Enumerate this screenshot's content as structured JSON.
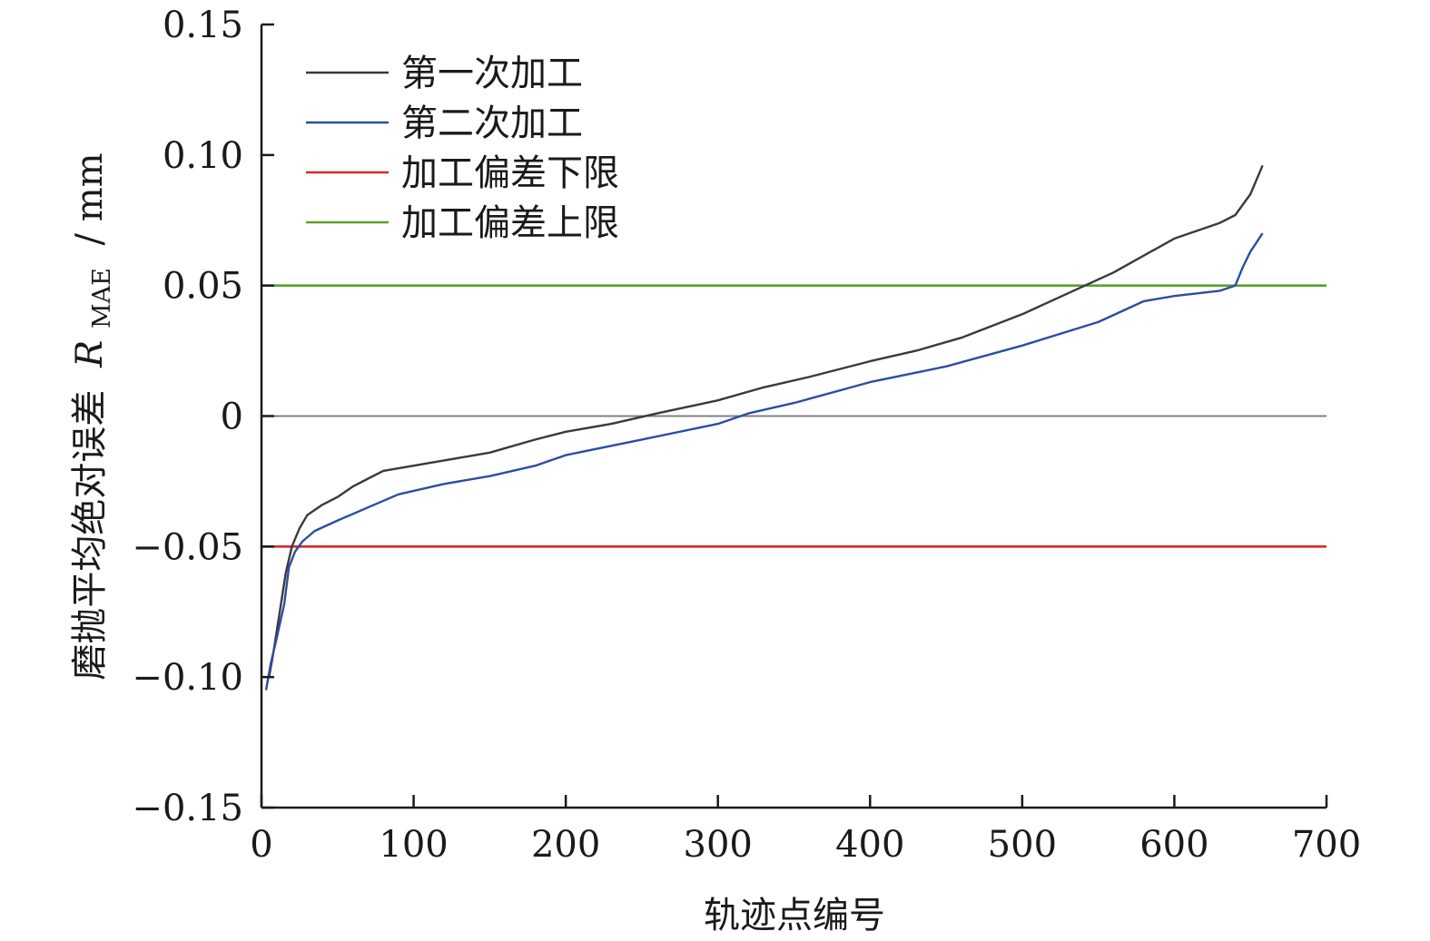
{
  "chart_data": {
    "type": "line",
    "xlabel": "轨迹点编号",
    "ylabel_main": "磨抛平均绝对误差",
    "ylabel_symbol": "R",
    "ylabel_subscript": "MAE",
    "ylabel_unit": "/ mm",
    "xlim": [
      0,
      700
    ],
    "ylim": [
      -0.15,
      0.15
    ],
    "x_ticks": [
      0,
      100,
      200,
      300,
      400,
      500,
      600,
      700
    ],
    "x_tick_labels": [
      "0",
      "100",
      "200",
      "300",
      "400",
      "500",
      "600",
      "700"
    ],
    "y_ticks": [
      -0.15,
      -0.1,
      -0.05,
      0,
      0.05,
      0.1,
      0.15
    ],
    "y_tick_labels": [
      "−0.15",
      "−0.10",
      "−0.05",
      "0",
      "0.05",
      "0.10",
      "0.15"
    ],
    "grid": false,
    "legend_position": "top-left",
    "zero_line_color": "#808080",
    "series": [
      {
        "name": "第一次加工",
        "color": "#3a3a3a",
        "x": [
          5,
          8,
          12,
          16,
          20,
          25,
          30,
          40,
          50,
          60,
          70,
          80,
          100,
          120,
          150,
          180,
          200,
          230,
          260,
          300,
          330,
          360,
          400,
          430,
          460,
          500,
          530,
          560,
          600,
          630,
          640,
          650,
          658
        ],
        "y": [
          -0.1,
          -0.09,
          -0.075,
          -0.06,
          -0.05,
          -0.043,
          -0.038,
          -0.034,
          -0.031,
          -0.027,
          -0.024,
          -0.021,
          -0.019,
          -0.017,
          -0.014,
          -0.009,
          -0.006,
          -0.003,
          0.001,
          0.006,
          0.011,
          0.015,
          0.021,
          0.025,
          0.03,
          0.039,
          0.047,
          0.055,
          0.068,
          0.074,
          0.077,
          0.085,
          0.096
        ]
      },
      {
        "name": "第二次加工",
        "color": "#2c4ea0",
        "x": [
          3,
          6,
          10,
          15,
          18,
          22,
          27,
          35,
          50,
          70,
          90,
          120,
          150,
          180,
          200,
          250,
          300,
          320,
          350,
          400,
          450,
          500,
          550,
          580,
          600,
          630,
          640,
          645,
          650,
          658
        ],
        "y": [
          -0.105,
          -0.095,
          -0.085,
          -0.072,
          -0.058,
          -0.052,
          -0.048,
          -0.044,
          -0.04,
          -0.035,
          -0.03,
          -0.026,
          -0.023,
          -0.019,
          -0.015,
          -0.009,
          -0.003,
          0.001,
          0.005,
          0.013,
          0.019,
          0.027,
          0.036,
          0.044,
          0.046,
          0.048,
          0.05,
          0.057,
          0.063,
          0.07
        ]
      },
      {
        "name": "加工偏差下限",
        "color": "#d62a2a",
        "x": [
          0,
          700
        ],
        "y": [
          -0.05,
          -0.05
        ]
      },
      {
        "name": "加工偏差上限",
        "color": "#5aa02c",
        "x": [
          0,
          700
        ],
        "y": [
          0.05,
          0.05
        ]
      }
    ]
  }
}
